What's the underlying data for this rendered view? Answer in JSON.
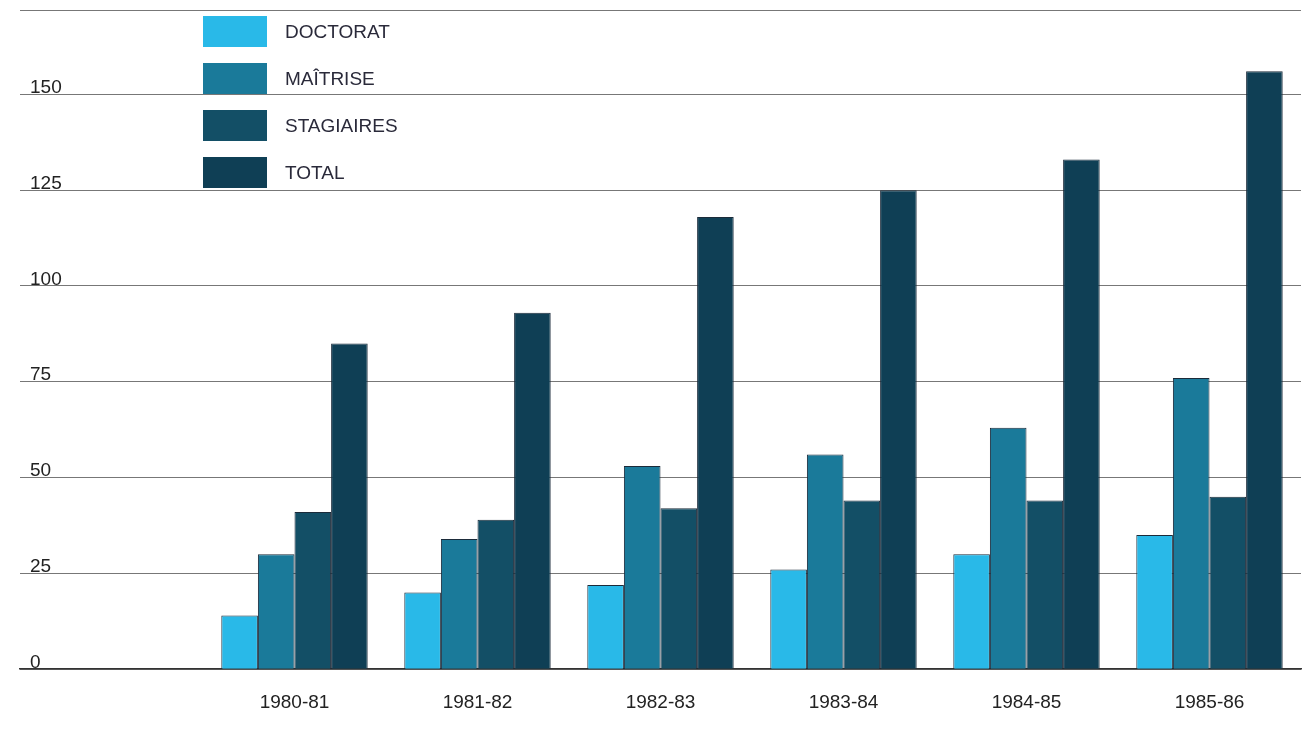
{
  "chart_data": {
    "type": "bar",
    "categories": [
      "1980-81",
      "1981-82",
      "1982-83",
      "1983-84",
      "1984-85",
      "1985-86"
    ],
    "series": [
      {
        "name": "DOCTORAT",
        "color": "#29b9e8",
        "values": [
          14,
          20,
          22,
          26,
          30,
          35
        ]
      },
      {
        "name": "MAÎTRISE",
        "color": "#1a7a9a",
        "values": [
          30,
          34,
          53,
          56,
          63,
          76
        ]
      },
      {
        "name": "STAGIAIRES",
        "color": "#134f66",
        "values": [
          41,
          39,
          42,
          44,
          44,
          45
        ]
      },
      {
        "name": "TOTAL",
        "color": "#0f3f55",
        "values": [
          85,
          93,
          118,
          125,
          133,
          156
        ]
      }
    ],
    "ylim": [
      0,
      172
    ],
    "yticks": [
      0,
      25,
      50,
      75,
      100,
      125,
      150,
      {
        "value": 172,
        "label": null
      }
    ],
    "grid": "y",
    "legend": "top left"
  }
}
